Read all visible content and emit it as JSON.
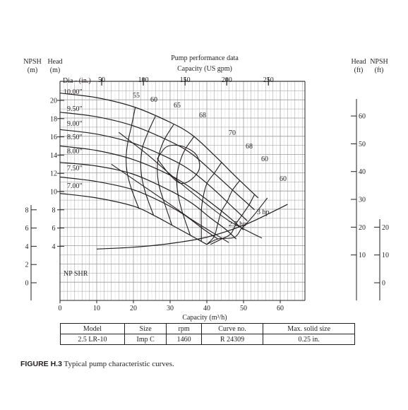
{
  "chart_data": {
    "type": "line",
    "title": "Pump performance data",
    "top_axis": {
      "label": "Capacity (US gpm)",
      "ticks": [
        50,
        100,
        150,
        200,
        250
      ],
      "range": [
        0,
        300
      ]
    },
    "bottom_axis": {
      "label": "Capacity (m³/h)",
      "ticks": [
        0,
        10,
        20,
        30,
        40,
        50,
        60
      ],
      "range": [
        0,
        68
      ]
    },
    "left_head_axis": {
      "label": "Head",
      "unit": "(m)",
      "ticks": [
        4,
        6,
        8,
        10,
        12,
        14,
        16,
        18,
        20
      ],
      "range": [
        0,
        22
      ]
    },
    "left_npsh_axis": {
      "label": "NPSH",
      "unit": "(m)",
      "ticks": [
        0,
        2,
        4,
        6,
        8
      ]
    },
    "right_head_axis": {
      "label": "Head",
      "unit": "(ft)",
      "ticks": [
        10,
        20,
        30,
        40,
        50,
        60
      ]
    },
    "right_npsh_axis": {
      "label": "NPSH",
      "unit": "(ft)",
      "ticks": [
        0,
        10,
        20
      ]
    },
    "dia_label": "Dia - (in.)",
    "impeller_curves": [
      {
        "name": "10.00\"",
        "points": [
          [
            0,
            20.8
          ],
          [
            10,
            20.3
          ],
          [
            20,
            19.3
          ],
          [
            30,
            17.6
          ],
          [
            36,
            16.2
          ],
          [
            42,
            14.0
          ],
          [
            48,
            11.6
          ],
          [
            54,
            9.3
          ]
        ]
      },
      {
        "name": "9.50\"",
        "points": [
          [
            0,
            18.7
          ],
          [
            10,
            18.2
          ],
          [
            20,
            17.2
          ],
          [
            30,
            15.5
          ],
          [
            36,
            14.1
          ],
          [
            42,
            12.0
          ],
          [
            48,
            9.8
          ],
          [
            53,
            8.0
          ]
        ]
      },
      {
        "name": "9.00\"",
        "points": [
          [
            0,
            16.8
          ],
          [
            10,
            16.3
          ],
          [
            20,
            15.3
          ],
          [
            30,
            13.6
          ],
          [
            36,
            12.2
          ],
          [
            42,
            10.2
          ],
          [
            47,
            8.3
          ],
          [
            51,
            6.8
          ]
        ]
      },
      {
        "name": "8.50\"",
        "points": [
          [
            0,
            15.0
          ],
          [
            10,
            14.5
          ],
          [
            20,
            13.5
          ],
          [
            30,
            11.8
          ],
          [
            36,
            10.3
          ],
          [
            42,
            8.5
          ],
          [
            46,
            7.2
          ],
          [
            50,
            5.8
          ]
        ]
      },
      {
        "name": "8.00\"",
        "points": [
          [
            0,
            13.2
          ],
          [
            10,
            12.8
          ],
          [
            20,
            11.9
          ],
          [
            30,
            10.1
          ],
          [
            36,
            8.7
          ],
          [
            41,
            7.1
          ],
          [
            45,
            5.9
          ],
          [
            48,
            4.8
          ]
        ]
      },
      {
        "name": "7.50\"",
        "points": [
          [
            0,
            11.6
          ],
          [
            10,
            11.1
          ],
          [
            20,
            10.2
          ],
          [
            28,
            8.8
          ],
          [
            34,
            7.4
          ],
          [
            39,
            5.9
          ],
          [
            43,
            4.8
          ]
        ]
      },
      {
        "name": "7.00\"",
        "points": [
          [
            0,
            9.8
          ],
          [
            10,
            9.3
          ],
          [
            20,
            8.4
          ],
          [
            26,
            7.3
          ],
          [
            31,
            6.2
          ],
          [
            36,
            5.1
          ],
          [
            40,
            4.2
          ]
        ]
      }
    ],
    "efficiency_labels": [
      "55",
      "60",
      "65",
      "68",
      "70",
      "68",
      "60",
      "60"
    ],
    "power_labels": [
      "3 hp",
      "2.5 hp"
    ],
    "npsh_curve": {
      "name": "NP SHR",
      "points": [
        [
          10,
          3.7
        ],
        [
          20,
          3.9
        ],
        [
          30,
          4.3
        ],
        [
          40,
          5.0
        ],
        [
          50,
          6.3
        ],
        [
          58,
          7.8
        ],
        [
          62,
          8.6
        ]
      ]
    }
  },
  "table": {
    "headers": [
      "Model",
      "Size",
      "rpm",
      "Curve no.",
      "Max. solid size"
    ],
    "row": [
      "2.5 LR-10",
      "Imp C",
      "1460",
      "R 24309",
      "0.25 in."
    ]
  },
  "caption": {
    "figure": "FIGURE H.3",
    "text": "Typical pump characteristic curves."
  }
}
